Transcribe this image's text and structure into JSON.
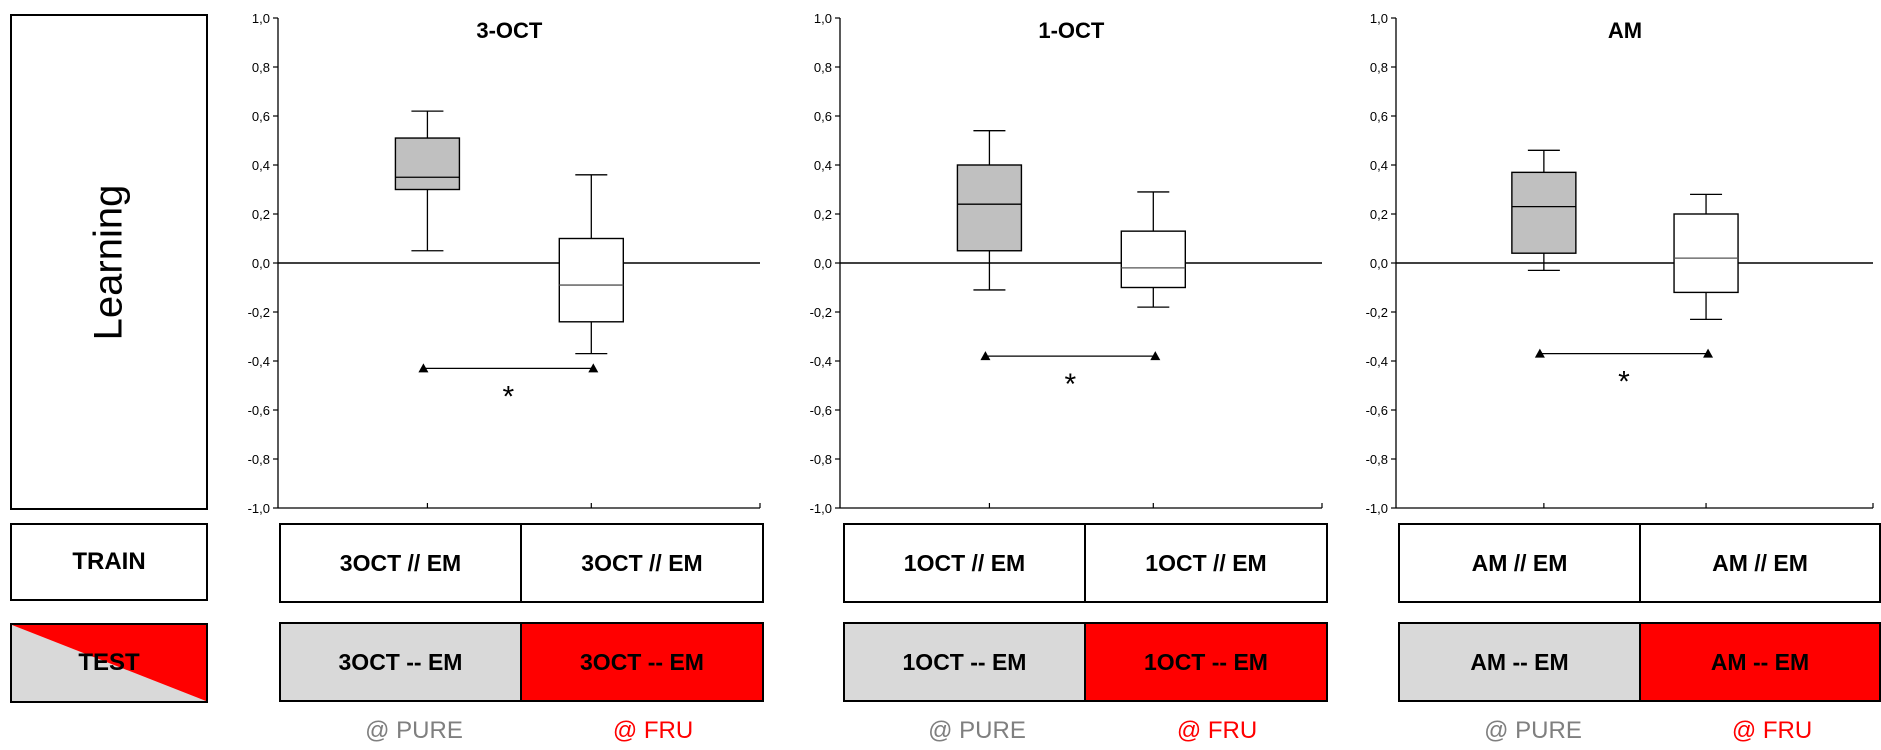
{
  "colors": {
    "pure": "#d9d9d9",
    "fru": "#ff0000",
    "box_fill_1": "#c0c0c0",
    "box_fill_2": "#ffffff",
    "pure_label": "#7f7f7f",
    "fru_label": "#ff0000"
  },
  "left": {
    "ylabel": "Learning",
    "train_label": "TRAIN",
    "test_label": "TEST"
  },
  "conditions": {
    "pure": "@ PURE",
    "fru": "@ FRU"
  },
  "y_tick_labels": [
    "1,0",
    "0,8",
    "0,6",
    "0,4",
    "0,2",
    "0,0",
    "-0,2",
    "-0,4",
    "-0,6",
    "-0,8",
    "-1,0"
  ],
  "significance_marker": "*",
  "panels": [
    {
      "title": "3-OCT",
      "train": [
        "3OCT // EM",
        "3OCT // EM"
      ],
      "test": [
        "3OCT -- EM",
        "3OCT -- EM"
      ]
    },
    {
      "title": "1-OCT",
      "train": [
        "1OCT // EM",
        "1OCT // EM"
      ],
      "test": [
        "1OCT -- EM",
        "1OCT -- EM"
      ]
    },
    {
      "title": "AM",
      "train": [
        "AM // EM",
        "AM // EM"
      ],
      "test": [
        "AM -- EM",
        "AM -- EM"
      ]
    }
  ],
  "chart_data": [
    {
      "type": "box",
      "title": "3-OCT",
      "ylim": [
        -1.0,
        1.0
      ],
      "ylabel": "Learning",
      "categories": [
        "@ PURE",
        "@ FRU"
      ],
      "boxes": [
        {
          "whisker_low": 0.05,
          "q1": 0.3,
          "median": 0.35,
          "q3": 0.51,
          "whisker_high": 0.62
        },
        {
          "whisker_low": -0.37,
          "q1": -0.24,
          "median": -0.09,
          "q3": 0.1,
          "whisker_high": 0.36
        }
      ],
      "significance": {
        "y": -0.43,
        "label": "*"
      }
    },
    {
      "type": "box",
      "title": "1-OCT",
      "ylim": [
        -1.0,
        1.0
      ],
      "ylabel": "Learning",
      "categories": [
        "@ PURE",
        "@ FRU"
      ],
      "boxes": [
        {
          "whisker_low": -0.11,
          "q1": 0.05,
          "median": 0.24,
          "q3": 0.4,
          "whisker_high": 0.54
        },
        {
          "whisker_low": -0.18,
          "q1": -0.1,
          "median": -0.02,
          "q3": 0.13,
          "whisker_high": 0.29
        }
      ],
      "significance": {
        "y": -0.38,
        "label": "*"
      }
    },
    {
      "type": "box",
      "title": "AM",
      "ylim": [
        -1.0,
        1.0
      ],
      "ylabel": "Learning",
      "categories": [
        "@ PURE",
        "@ FRU"
      ],
      "boxes": [
        {
          "whisker_low": -0.03,
          "q1": 0.04,
          "median": 0.23,
          "q3": 0.37,
          "whisker_high": 0.46
        },
        {
          "whisker_low": -0.23,
          "q1": -0.12,
          "median": 0.02,
          "q3": 0.2,
          "whisker_high": 0.28
        }
      ],
      "significance": {
        "y": -0.37,
        "label": "*"
      }
    }
  ]
}
